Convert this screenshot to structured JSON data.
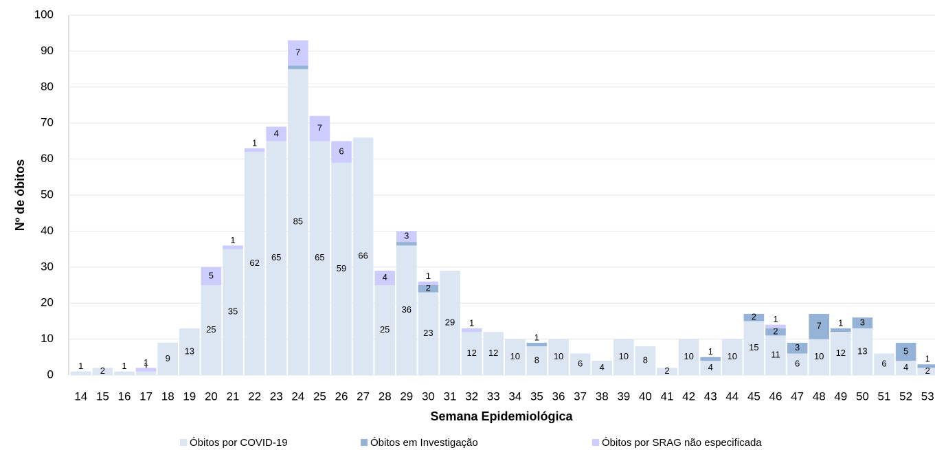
{
  "chart_data": {
    "type": "stacked_bar",
    "x_label": "Semana Epidemiológica",
    "y_label": "Nº de óbitos",
    "categories": [
      "14",
      "15",
      "16",
      "17",
      "18",
      "19",
      "20",
      "21",
      "22",
      "23",
      "24",
      "25",
      "26",
      "27",
      "28",
      "29",
      "30",
      "31",
      "32",
      "33",
      "34",
      "35",
      "36",
      "37",
      "38",
      "39",
      "40",
      "41",
      "42",
      "43",
      "44",
      "45",
      "46",
      "47",
      "48",
      "49",
      "50",
      "51",
      "52",
      "53"
    ],
    "series": [
      {
        "name": "Óbitos por COVID-19",
        "color": "#dce6f2",
        "values": [
          1,
          2,
          1,
          1,
          9,
          13,
          25,
          35,
          62,
          65,
          85,
          65,
          59,
          66,
          25,
          36,
          23,
          29,
          12,
          12,
          10,
          8,
          10,
          6,
          4,
          10,
          8,
          2,
          10,
          4,
          10,
          15,
          11,
          6,
          10,
          12,
          13,
          6,
          4,
          2
        ]
      },
      {
        "name": "Óbitos em Investigação",
        "color": "#95b3d7",
        "values": [
          0,
          0,
          0,
          0,
          0,
          0,
          0,
          0,
          0,
          0,
          1,
          0,
          0,
          0,
          0,
          1,
          2,
          0,
          0,
          0,
          0,
          1,
          0,
          0,
          0,
          0,
          0,
          0,
          0,
          1,
          0,
          2,
          2,
          3,
          7,
          1,
          3,
          0,
          5,
          1
        ]
      },
      {
        "name": "Óbitos por SRAG não especificada",
        "color": "#ccccff",
        "values": [
          0,
          0,
          0,
          1,
          0,
          0,
          5,
          1,
          1,
          4,
          7,
          7,
          6,
          0,
          4,
          3,
          1,
          0,
          1,
          0,
          0,
          0,
          0,
          0,
          0,
          0,
          0,
          0,
          0,
          0,
          0,
          0,
          1,
          0,
          0,
          0,
          0,
          0,
          0,
          0
        ]
      }
    ],
    "ylim": [
      0,
      100
    ],
    "yticks": [
      0,
      10,
      20,
      30,
      40,
      50,
      60,
      70,
      80,
      90,
      100
    ],
    "grid": true
  }
}
